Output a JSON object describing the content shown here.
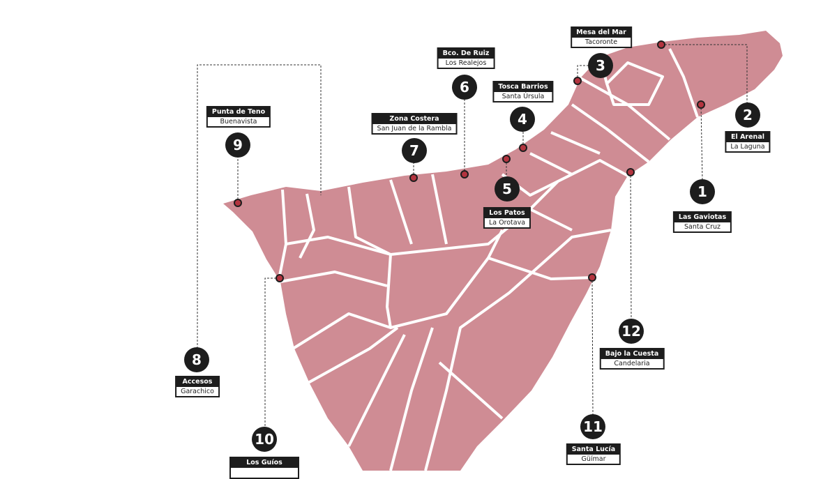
{
  "colors": {
    "island": "#cf8c94",
    "borders": "#ffffff",
    "dot": "#b3343f",
    "marker": "#1d1d1d"
  },
  "markers": [
    {
      "number": "1",
      "title": "Las Gaviotas",
      "municipality": "Santa Cruz"
    },
    {
      "number": "2",
      "title": "El Arenal",
      "municipality": "La Laguna"
    },
    {
      "number": "3",
      "title": "Mesa del Mar",
      "municipality": "Tacoronte"
    },
    {
      "number": "4",
      "title": "Tosca Barrios",
      "municipality": "Santa Úrsula"
    },
    {
      "number": "5",
      "title": "Los Patos",
      "municipality": "La Orotava"
    },
    {
      "number": "6",
      "title": "Bco. De Ruiz",
      "municipality": "Los Realejos"
    },
    {
      "number": "7",
      "title": "Zona Costera",
      "municipality": "San Juan de la Rambla"
    },
    {
      "number": "8",
      "title": "Accesos",
      "municipality": "Garachico"
    },
    {
      "number": "9",
      "title": "Punta de Teno",
      "municipality": "Buenavista"
    },
    {
      "number": "10",
      "title": "Los Guíos",
      "municipality": ""
    },
    {
      "number": "11",
      "title": "Santa Lucía",
      "municipality": "Güímar"
    },
    {
      "number": "12",
      "title": "Bajo la Cuesta",
      "municipality": "Candelaria"
    }
  ]
}
